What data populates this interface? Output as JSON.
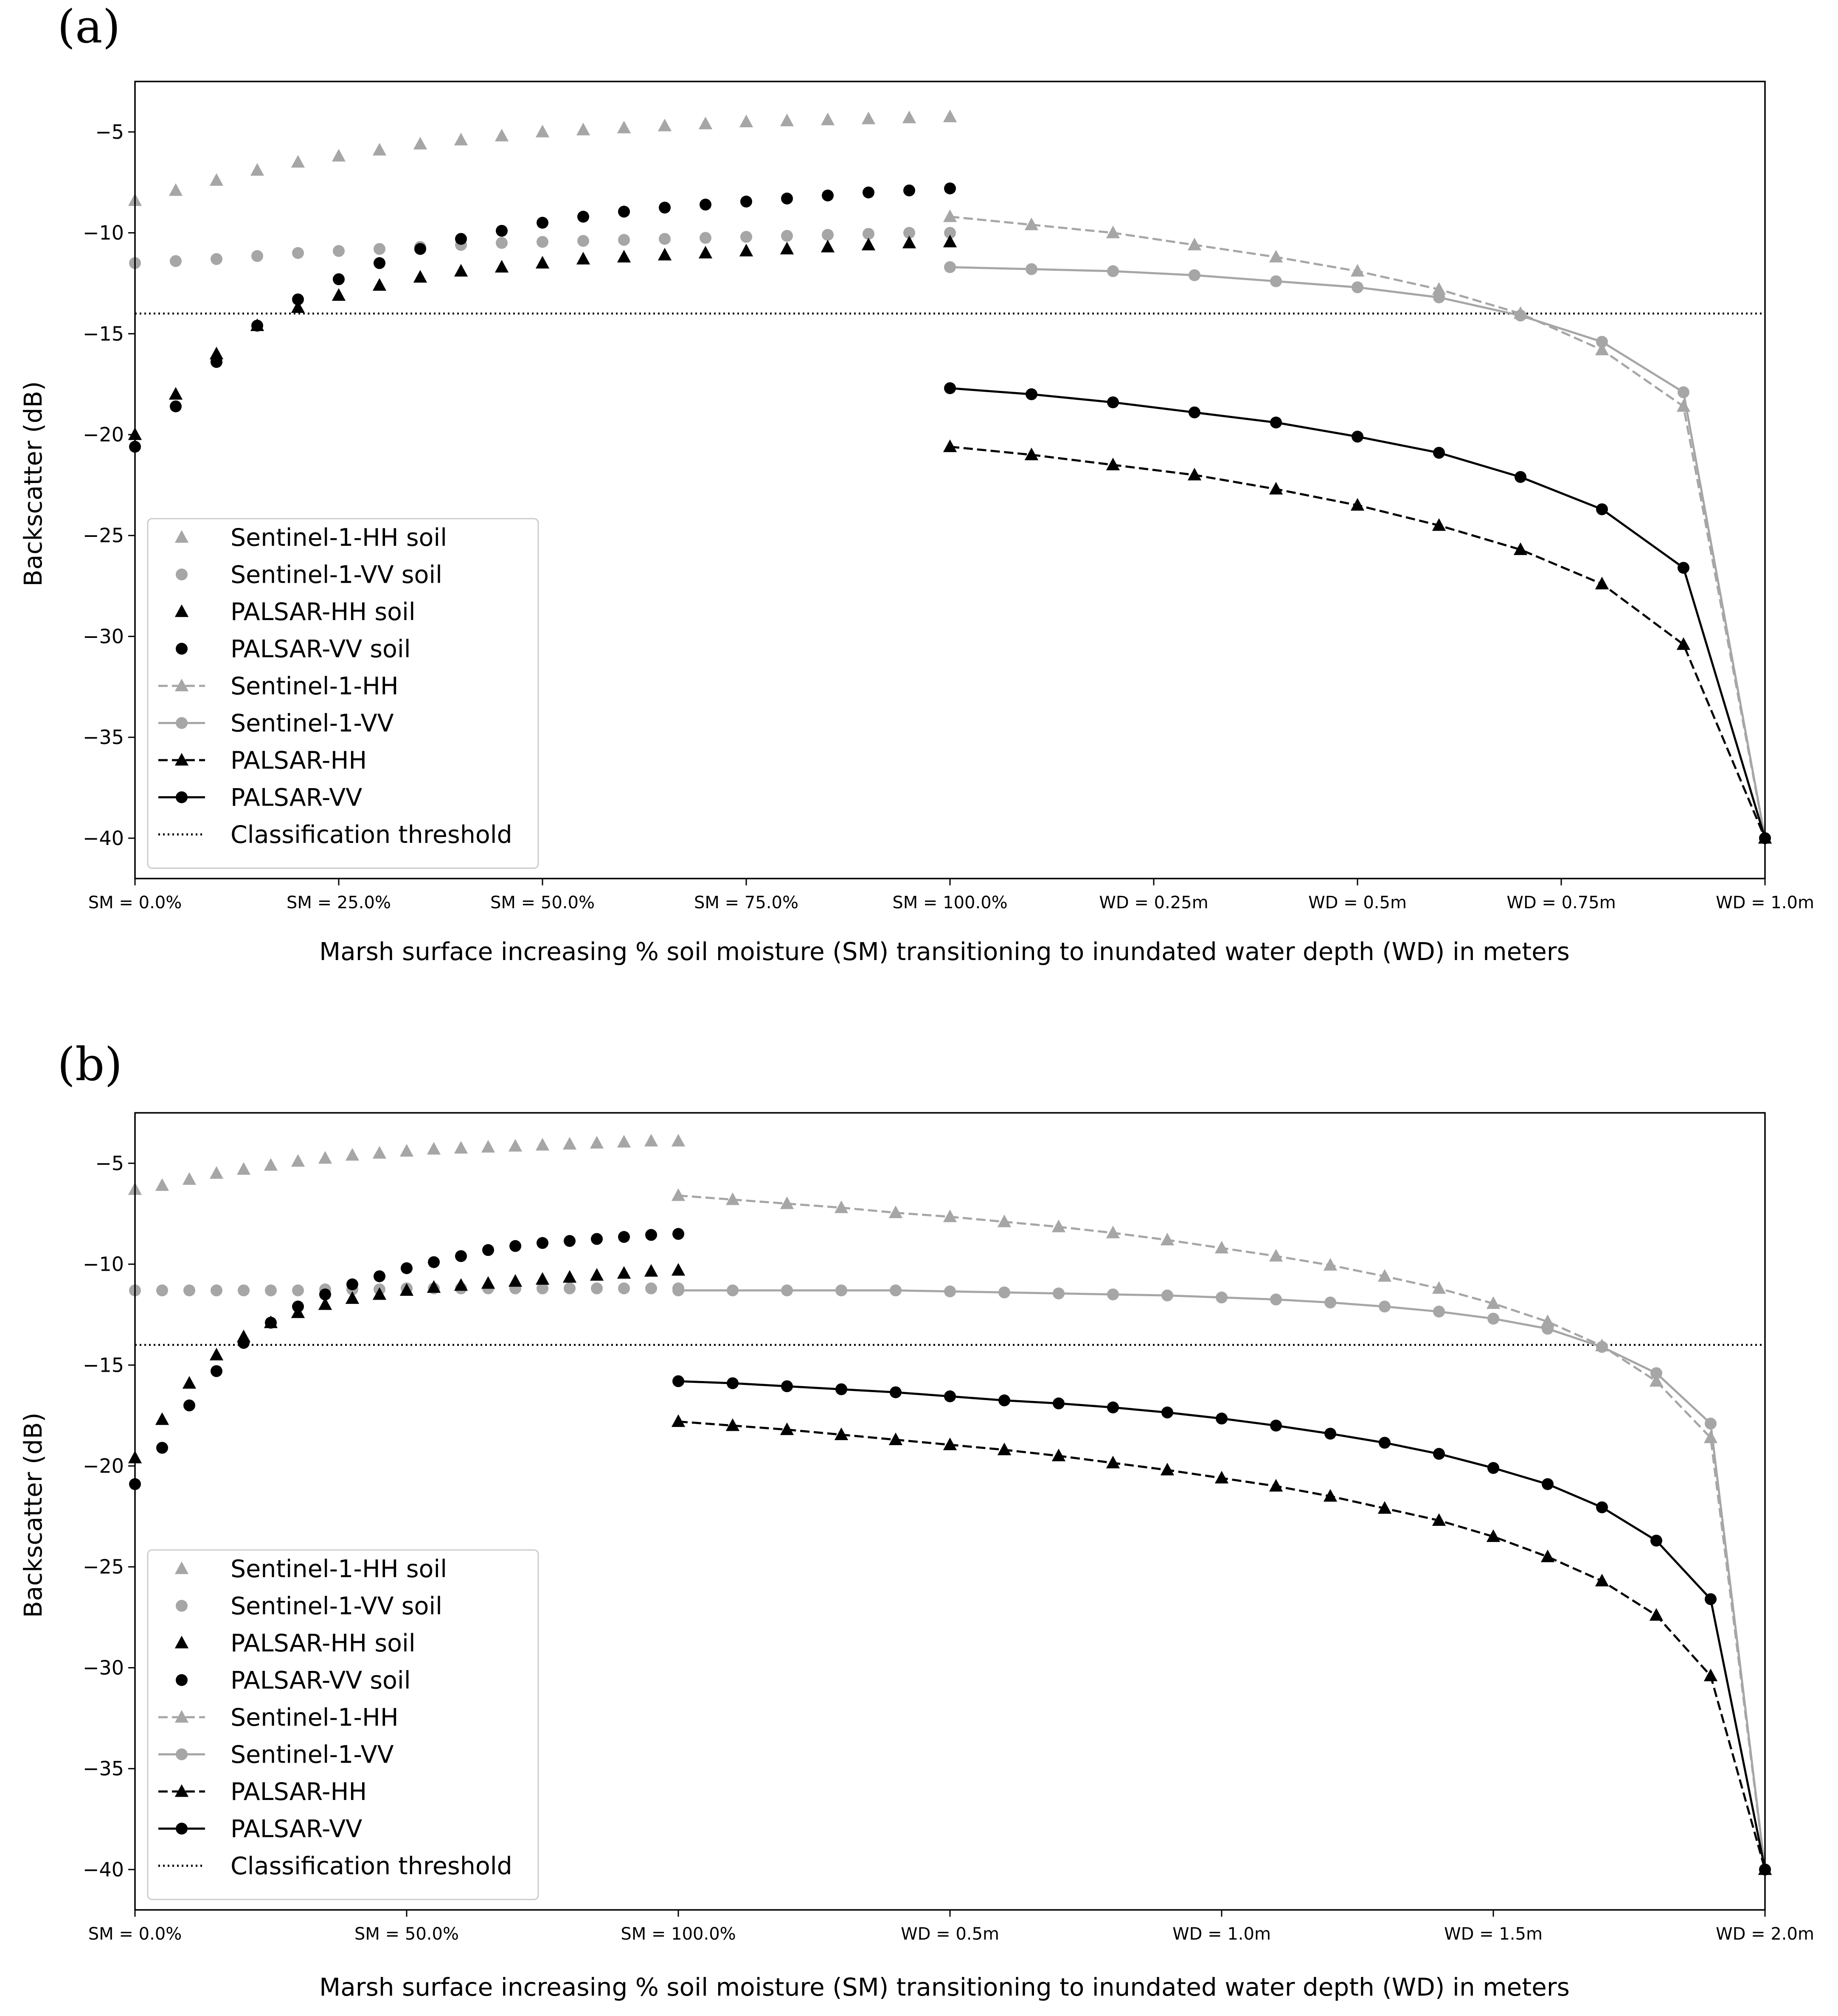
{
  "colors": {
    "black": "#000000",
    "gray": "#a6a6a6"
  },
  "legend_entries": [
    {
      "key": "s1hh_soil",
      "label": "Sentinel-1-HH soil",
      "style": "marker",
      "color": "#a6a6a6",
      "marker": "triangle"
    },
    {
      "key": "s1vv_soil",
      "label": "Sentinel-1-VV soil",
      "style": "marker",
      "color": "#a6a6a6",
      "marker": "circle"
    },
    {
      "key": "phh_soil",
      "label": "PALSAR-HH soil",
      "style": "marker",
      "color": "#000000",
      "marker": "triangle"
    },
    {
      "key": "pvv_soil",
      "label": "PALSAR-VV soil",
      "style": "marker",
      "color": "#000000",
      "marker": "circle"
    },
    {
      "key": "s1hh",
      "label": "Sentinel-1-HH",
      "style": "dashed",
      "color": "#a6a6a6",
      "marker": "triangle"
    },
    {
      "key": "s1vv",
      "label": "Sentinel-1-VV",
      "style": "solid",
      "color": "#a6a6a6",
      "marker": "circle"
    },
    {
      "key": "phh",
      "label": "PALSAR-HH",
      "style": "dashed",
      "color": "#000000",
      "marker": "triangle"
    },
    {
      "key": "pvv",
      "label": "PALSAR-VV",
      "style": "solid",
      "color": "#000000",
      "marker": "circle"
    },
    {
      "key": "threshold",
      "label": "Classification threshold",
      "style": "dotted",
      "color": "#000000",
      "marker": "none"
    }
  ],
  "chart_data": [
    {
      "panel": "(a)",
      "type": "scatter+line",
      "xlabel": "Marsh surface increasing % soil moisture (SM) transitioning to inundated water depth (WD) in meters",
      "ylabel": "Backscatter (dB)",
      "xlim": [
        0,
        2
      ],
      "ylim": [
        -42,
        -2.5
      ],
      "xticks": [
        0,
        0.25,
        0.5,
        0.75,
        1.0,
        1.25,
        1.5,
        1.75,
        2.0
      ],
      "xtick_labels": [
        "SM = 0.0%",
        "SM = 25.0%",
        "SM = 50.0%",
        "SM = 75.0%",
        "SM = 100.0%",
        "WD = 0.25m",
        "WD = 0.5m",
        "WD = 0.75m",
        "WD = 1.0m"
      ],
      "yticks": [
        -5,
        -10,
        -15,
        -20,
        -25,
        -30,
        -35,
        -40
      ],
      "ytick_labels": [
        "−5",
        "−10",
        "−15",
        "−20",
        "−25",
        "−30",
        "−35",
        "−40"
      ],
      "threshold": -14,
      "soil_x": [
        0,
        0.05,
        0.1,
        0.15,
        0.2,
        0.25,
        0.3,
        0.35,
        0.4,
        0.45,
        0.5,
        0.55,
        0.6,
        0.65,
        0.7,
        0.75,
        0.8,
        0.85,
        0.9,
        0.95,
        1.0
      ],
      "water_x": [
        1.0,
        1.1,
        1.2,
        1.3,
        1.4,
        1.5,
        1.6,
        1.7,
        1.8,
        1.9,
        2.0
      ],
      "series": [
        {
          "key": "s1hh_soil",
          "values": [
            -8.4,
            -7.9,
            -7.4,
            -6.9,
            -6.5,
            -6.2,
            -5.9,
            -5.6,
            -5.4,
            -5.2,
            -5.0,
            -4.9,
            -4.8,
            -4.7,
            -4.6,
            -4.5,
            -4.45,
            -4.4,
            -4.35,
            -4.3,
            -4.25
          ]
        },
        {
          "key": "s1vv_soil",
          "values": [
            -11.5,
            -11.4,
            -11.3,
            -11.15,
            -11.0,
            -10.9,
            -10.8,
            -10.7,
            -10.6,
            -10.5,
            -10.45,
            -10.4,
            -10.35,
            -10.3,
            -10.25,
            -10.2,
            -10.15,
            -10.1,
            -10.05,
            -10.0,
            -10.0
          ]
        },
        {
          "key": "phh_soil",
          "values": [
            -20.0,
            -18.0,
            -16.0,
            -14.6,
            -13.7,
            -13.1,
            -12.6,
            -12.2,
            -11.9,
            -11.7,
            -11.5,
            -11.3,
            -11.2,
            -11.1,
            -11.0,
            -10.9,
            -10.8,
            -10.7,
            -10.6,
            -10.5,
            -10.45
          ]
        },
        {
          "key": "pvv_soil",
          "values": [
            -20.6,
            -18.6,
            -16.4,
            -14.6,
            -13.3,
            -12.3,
            -11.5,
            -10.8,
            -10.3,
            -9.9,
            -9.5,
            -9.2,
            -8.95,
            -8.75,
            -8.6,
            -8.45,
            -8.3,
            -8.15,
            -8.0,
            -7.9,
            -7.8
          ]
        },
        {
          "key": "s1hh",
          "values": [
            -9.2,
            -9.6,
            -10.0,
            -10.6,
            -11.2,
            -11.9,
            -12.8,
            -14.0,
            -15.8,
            -18.6,
            -40.0
          ]
        },
        {
          "key": "s1vv",
          "values": [
            -11.7,
            -11.8,
            -11.9,
            -12.1,
            -12.4,
            -12.7,
            -13.2,
            -14.1,
            -15.4,
            -17.9,
            -40.0
          ]
        },
        {
          "key": "phh",
          "values": [
            -20.6,
            -21.0,
            -21.5,
            -22.0,
            -22.7,
            -23.5,
            -24.5,
            -25.7,
            -27.4,
            -30.4,
            -40.0
          ]
        },
        {
          "key": "pvv",
          "values": [
            -17.7,
            -18.0,
            -18.4,
            -18.9,
            -19.4,
            -20.1,
            -20.9,
            -22.1,
            -23.7,
            -26.6,
            -40.0
          ]
        }
      ]
    },
    {
      "panel": "(b)",
      "type": "scatter+line",
      "xlabel": "Marsh surface increasing % soil moisture (SM) transitioning to inundated water depth (WD) in meters",
      "ylabel": "Backscatter (dB)",
      "xlim": [
        0,
        3
      ],
      "ylim": [
        -42,
        -2.5
      ],
      "xticks": [
        0,
        0.5,
        1.0,
        1.5,
        2.0,
        2.5,
        3.0
      ],
      "xtick_labels": [
        "SM = 0.0%",
        "SM = 50.0%",
        "SM = 100.0%",
        "WD = 0.5m",
        "WD = 1.0m",
        "WD = 1.5m",
        "WD = 2.0m"
      ],
      "yticks": [
        -5,
        -10,
        -15,
        -20,
        -25,
        -30,
        -35,
        -40
      ],
      "ytick_labels": [
        "−5",
        "−10",
        "−15",
        "−20",
        "−25",
        "−30",
        "−35",
        "−40"
      ],
      "threshold": -14,
      "soil_x": [
        0,
        0.05,
        0.1,
        0.15,
        0.2,
        0.25,
        0.3,
        0.35,
        0.4,
        0.45,
        0.5,
        0.55,
        0.6,
        0.65,
        0.7,
        0.75,
        0.8,
        0.85,
        0.9,
        0.95,
        1.0
      ],
      "water_x": [
        1.0,
        1.1,
        1.2,
        1.3,
        1.4,
        1.5,
        1.6,
        1.7,
        1.8,
        1.9,
        2.0,
        2.1,
        2.2,
        2.3,
        2.4,
        2.5,
        2.6,
        2.7,
        2.8,
        2.9,
        3.0
      ],
      "series": [
        {
          "key": "s1hh_soil",
          "values": [
            -6.3,
            -6.1,
            -5.8,
            -5.5,
            -5.3,
            -5.1,
            -4.9,
            -4.75,
            -4.6,
            -4.5,
            -4.4,
            -4.3,
            -4.25,
            -4.2,
            -4.15,
            -4.1,
            -4.05,
            -4.0,
            -3.95,
            -3.9,
            -3.9
          ]
        },
        {
          "key": "s1vv_soil",
          "values": [
            -11.3,
            -11.3,
            -11.3,
            -11.3,
            -11.3,
            -11.3,
            -11.3,
            -11.25,
            -11.25,
            -11.25,
            -11.2,
            -11.2,
            -11.2,
            -11.2,
            -11.2,
            -11.2,
            -11.2,
            -11.2,
            -11.2,
            -11.2,
            -11.2
          ]
        },
        {
          "key": "phh_soil",
          "values": [
            -19.6,
            -17.7,
            -15.9,
            -14.5,
            -13.6,
            -12.9,
            -12.4,
            -12.0,
            -11.7,
            -11.5,
            -11.3,
            -11.15,
            -11.05,
            -10.95,
            -10.85,
            -10.75,
            -10.65,
            -10.55,
            -10.45,
            -10.35,
            -10.3
          ]
        },
        {
          "key": "pvv_soil",
          "values": [
            -20.9,
            -19.1,
            -17.0,
            -15.3,
            -13.9,
            -12.9,
            -12.1,
            -11.5,
            -11.0,
            -10.6,
            -10.2,
            -9.9,
            -9.6,
            -9.3,
            -9.1,
            -8.95,
            -8.85,
            -8.75,
            -8.65,
            -8.55,
            -8.5
          ]
        },
        {
          "key": "s1hh",
          "values": [
            -6.6,
            -6.8,
            -7.0,
            -7.2,
            -7.45,
            -7.65,
            -7.9,
            -8.15,
            -8.45,
            -8.8,
            -9.2,
            -9.6,
            -10.05,
            -10.6,
            -11.2,
            -11.95,
            -12.85,
            -14.05,
            -15.8,
            -18.6,
            -40.0
          ]
        },
        {
          "key": "s1vv",
          "values": [
            -11.3,
            -11.3,
            -11.3,
            -11.3,
            -11.3,
            -11.35,
            -11.4,
            -11.45,
            -11.5,
            -11.55,
            -11.65,
            -11.75,
            -11.9,
            -12.1,
            -12.35,
            -12.7,
            -13.2,
            -14.1,
            -15.4,
            -17.9,
            -40.0
          ]
        },
        {
          "key": "phh",
          "values": [
            -17.8,
            -18.0,
            -18.2,
            -18.45,
            -18.7,
            -18.95,
            -19.2,
            -19.5,
            -19.85,
            -20.2,
            -20.6,
            -21.0,
            -21.5,
            -22.1,
            -22.7,
            -23.5,
            -24.5,
            -25.7,
            -27.4,
            -30.4,
            -40.0
          ]
        },
        {
          "key": "pvv",
          "values": [
            -15.8,
            -15.9,
            -16.05,
            -16.2,
            -16.35,
            -16.55,
            -16.75,
            -16.9,
            -17.1,
            -17.35,
            -17.65,
            -18.0,
            -18.4,
            -18.85,
            -19.4,
            -20.1,
            -20.9,
            -22.05,
            -23.7,
            -26.6,
            -40.0
          ]
        }
      ]
    }
  ]
}
